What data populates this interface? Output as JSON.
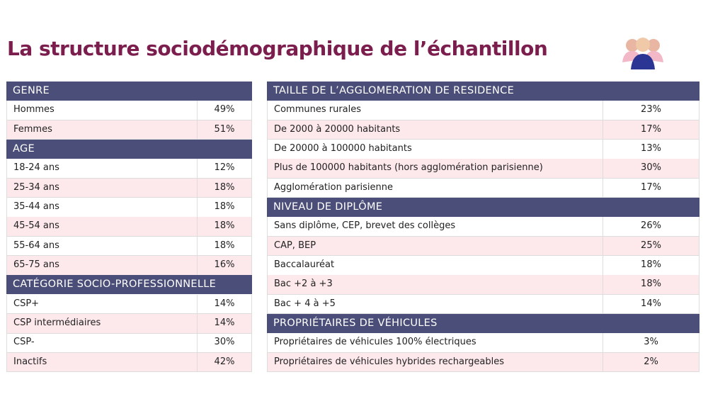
{
  "title": "La structure sociodémographique de l’échantillon",
  "tables": [
    {
      "sections": [
        {
          "heading": "GENRE",
          "rows": [
            [
              "Hommes",
              "49%"
            ],
            [
              "Femmes",
              "51%"
            ]
          ]
        },
        {
          "heading": "AGE",
          "rows": [
            [
              "18-24 ans",
              "12%"
            ],
            [
              "25-34 ans",
              "18%"
            ],
            [
              "35-44 ans",
              "18%"
            ],
            [
              "45-54 ans",
              "18%"
            ],
            [
              "55-64 ans",
              "18%"
            ],
            [
              "65-75 ans",
              "16%"
            ]
          ]
        },
        {
          "heading": "CATÉGORIE SOCIO-PROFESSIONNELLE",
          "rows": [
            [
              "CSP+",
              "14%"
            ],
            [
              "CSP intermédiaires",
              "14%"
            ],
            [
              "CSP-",
              "30%"
            ],
            [
              "Inactifs",
              "42%"
            ]
          ]
        }
      ]
    },
    {
      "sections": [
        {
          "heading": "TAILLE DE L’AGGLOMERATION DE RESIDENCE",
          "rows": [
            [
              "Communes rurales",
              "23%"
            ],
            [
              "De 2000 à 20000 habitants",
              "17%"
            ],
            [
              "De 20000 à 100000 habitants",
              "13%"
            ],
            [
              "Plus de 100000 habitants (hors agglomération parisienne)",
              "30%"
            ],
            [
              "Agglomération parisienne",
              "17%"
            ]
          ]
        },
        {
          "heading": "NIVEAU DE DIPLÔME",
          "rows": [
            [
              "Sans diplôme, CEP, brevet des collèges",
              "26%"
            ],
            [
              "CAP, BEP",
              "25%"
            ],
            [
              "Baccalauréat",
              "18%"
            ],
            [
              "Bac +2 à +3",
              "18%"
            ],
            [
              "Bac + 4 à +5",
              "14%"
            ]
          ]
        },
        {
          "heading": "PROPRIÉTAIRES DE VÉHICULES",
          "rows": [
            [
              "Propriétaires de véhicules 100% électriques",
              "3%"
            ],
            [
              "Propriétaires de véhicules hybrides rechargeables",
              "2%"
            ]
          ]
        }
      ]
    }
  ]
}
